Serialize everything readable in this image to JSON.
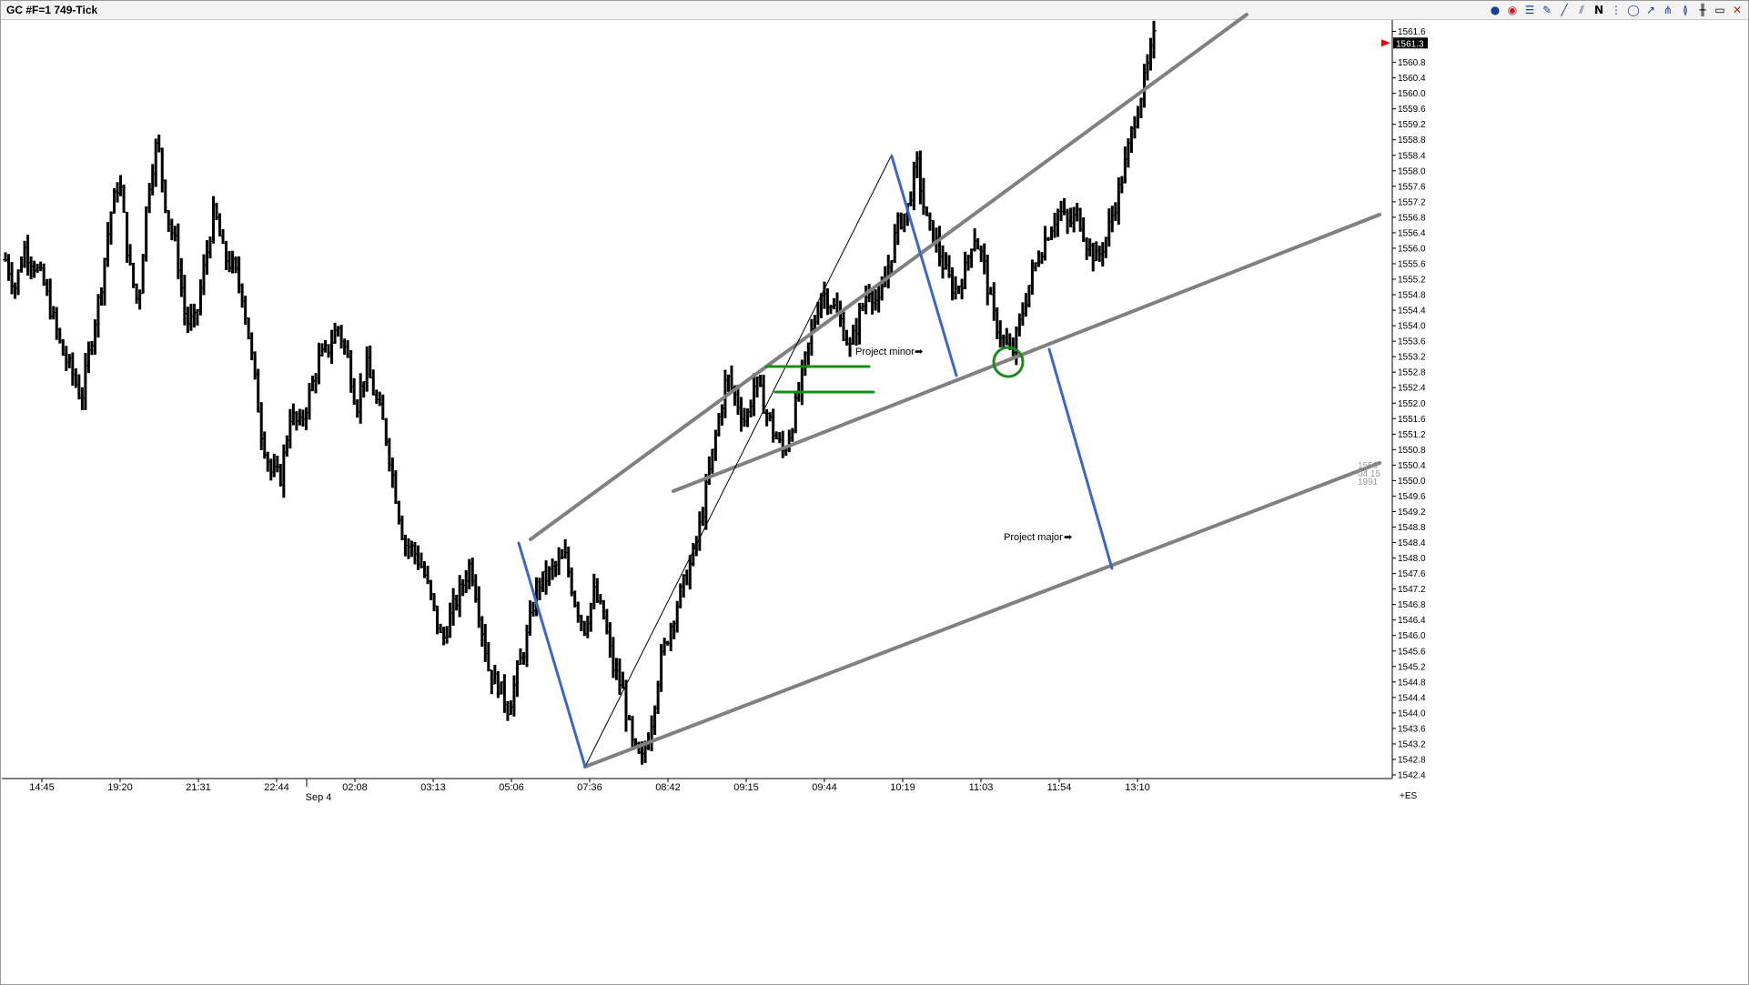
{
  "window": {
    "title": "GC #F=1  749-Tick"
  },
  "toolbar": {
    "icons": [
      "color-palette-icon",
      "properties-icon",
      "chart-style-icon",
      "pencil-icon",
      "line-icon",
      "parallel-lines-icon",
      "text-n-icon",
      "fibonacci-icon",
      "circle-icon",
      "trendline-icon",
      "pitchfork-icon",
      "cycle-icon",
      "bar-icon",
      "rectangle-icon",
      "close-icon"
    ]
  },
  "watermark": [
    "1550",
    "04 15",
    "1991"
  ],
  "chart_data": {
    "type": "ohlc",
    "title": "GC #F=1  749-Tick",
    "ylim": [
      1542.4,
      1561.8
    ],
    "y_tick_labels": [
      "1561.6",
      "1560.8",
      "1560.4",
      "1560.0",
      "1559.6",
      "1559.2",
      "1558.8",
      "1558.4",
      "1558.0",
      "1557.6",
      "1557.2",
      "1556.8",
      "1556.4",
      "1556.0",
      "1555.6",
      "1555.2",
      "1554.8",
      "1554.4",
      "1554.0",
      "1553.6",
      "1553.2",
      "1552.8",
      "1552.4",
      "1552.0",
      "1551.6",
      "1551.2",
      "1550.8",
      "1550.4",
      "1550.0",
      "1549.6",
      "1549.2",
      "1548.8",
      "1548.4",
      "1548.0",
      "1547.6",
      "1547.2",
      "1546.8",
      "1546.4",
      "1546.0",
      "1545.6",
      "1545.2",
      "1544.8",
      "1544.4",
      "1544.0",
      "1543.6",
      "1543.2",
      "1542.8",
      "1542.4"
    ],
    "last_price_label": "1561.3",
    "x_tick_labels": [
      "14:45",
      "19:20",
      "21:31",
      "22:44",
      "02:08",
      "03:13",
      "05:06",
      "07:36",
      "08:42",
      "09:15",
      "09:44",
      "10:19",
      "11:03",
      "11:54",
      "13:10"
    ],
    "date_label": "Sep 4",
    "corner_label": "+ES",
    "annotations": [
      "Project minor",
      "Project major"
    ],
    "grid": false,
    "price_path": [
      1555.7,
      1555.0,
      1556.0,
      1555.6,
      1555.1,
      1554.2,
      1553.3,
      1552.8,
      1552.1,
      1553.6,
      1554.9,
      1556.8,
      1557.8,
      1555.6,
      1554.5,
      1557.5,
      1558.8,
      1556.9,
      1556.0,
      1554.1,
      1554.1,
      1555.6,
      1557.0,
      1555.8,
      1555.5,
      1554.8,
      1553.1,
      1551.2,
      1550.2,
      1550.1,
      1551.7,
      1551.4,
      1552.2,
      1553.1,
      1553.4,
      1554.0,
      1553.2,
      1551.9,
      1553.0,
      1552.1,
      1551.3,
      1549.8,
      1548.4,
      1548.2,
      1547.7,
      1546.8,
      1545.8,
      1546.6,
      1547.2,
      1547.9,
      1546.5,
      1545.0,
      1544.7,
      1544.1,
      1545.1,
      1546.0,
      1547.3,
      1547.5,
      1547.8,
      1548.0,
      1546.9,
      1546.2,
      1547.1,
      1546.5,
      1545.2,
      1544.6,
      1543.2,
      1542.7,
      1543.7,
      1545.3,
      1546.2,
      1547.0,
      1547.7,
      1548.6,
      1550.0,
      1551.4,
      1552.7,
      1552.1,
      1551.5,
      1552.6,
      1551.9,
      1551.2,
      1550.7,
      1551.6,
      1552.8,
      1553.9,
      1554.9,
      1554.6,
      1554.1,
      1553.4,
      1554.3,
      1555.0,
      1554.5,
      1555.5,
      1556.6,
      1557.0,
      1558.2,
      1556.7,
      1556.2,
      1555.4,
      1554.9,
      1555.3,
      1556.4,
      1555.7,
      1554.3,
      1553.7,
      1553.2,
      1554.2,
      1555.2,
      1555.9,
      1556.5,
      1557.0,
      1556.6,
      1556.9,
      1556.1,
      1555.7,
      1556.3,
      1557.2,
      1558.2,
      1559.4,
      1560.3,
      1561.4
    ]
  }
}
